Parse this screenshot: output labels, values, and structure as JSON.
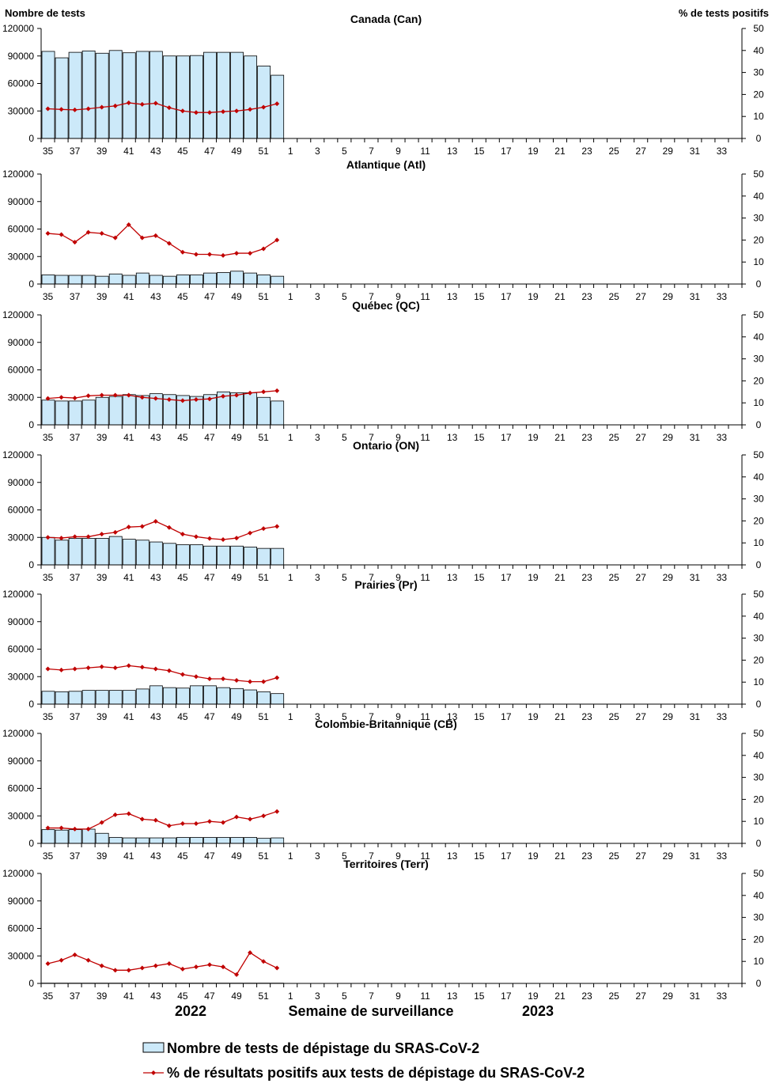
{
  "chart_data": {
    "type": "bar+line",
    "y_left_label": "Nombre de tests",
    "y_right_label": "% de tests positifs",
    "y_left_range": [
      0,
      120000
    ],
    "y_left_ticks": [
      0,
      30000,
      60000,
      90000,
      120000
    ],
    "y_right_range": [
      0,
      50
    ],
    "y_right_ticks": [
      0,
      10,
      20,
      30,
      40,
      50
    ],
    "weeks": [
      "35",
      "36",
      "37",
      "38",
      "39",
      "40",
      "41",
      "42",
      "43",
      "44",
      "45",
      "46",
      "47",
      "48",
      "49",
      "50",
      "51",
      "52",
      "1",
      "2",
      "3",
      "4",
      "5",
      "6",
      "7",
      "8",
      "9",
      "10",
      "11",
      "12",
      "13",
      "14",
      "15",
      "16",
      "17",
      "18",
      "19",
      "20",
      "21",
      "22",
      "23",
      "24",
      "25",
      "26",
      "27",
      "28",
      "29",
      "30",
      "31",
      "32",
      "33",
      "34"
    ],
    "week_tick_labels": [
      "35",
      "37",
      "39",
      "41",
      "43",
      "45",
      "47",
      "49",
      "51",
      "1",
      "3",
      "5",
      "7",
      "9",
      "11",
      "13",
      "15",
      "17",
      "19",
      "21",
      "23",
      "25",
      "27",
      "29",
      "31",
      "33"
    ],
    "year_labels": [
      "2022",
      "2023"
    ],
    "x_axis_title": "Semaine de surveillance",
    "legend": {
      "bars": "Nombre de tests de dépistage du SRAS-CoV-2",
      "line": "% de résultats positifs aux tests de dépistage du SRAS-CoV-2"
    },
    "colors": {
      "bar_fill": "#cce9f9",
      "bar_stroke": "#000000",
      "line": "#c00000",
      "marker": "#c00000"
    },
    "panels": [
      {
        "title": "Canada (Can)",
        "tests": [
          95000,
          88000,
          94000,
          95500,
          93000,
          96000,
          93500,
          95000,
          95000,
          90000,
          90000,
          90500,
          94000,
          94000,
          94000,
          90000,
          79000,
          69000
        ],
        "positivity": [
          13.5,
          13.2,
          13.0,
          13.5,
          14.2,
          14.8,
          16.2,
          15.5,
          16.0,
          14.0,
          12.5,
          11.8,
          11.8,
          12.2,
          12.5,
          13.2,
          14.2,
          15.8
        ]
      },
      {
        "title": "Atlantique (Atl)",
        "tests": [
          10000,
          9500,
          9500,
          9500,
          8500,
          11000,
          9500,
          12000,
          9500,
          8500,
          10000,
          10000,
          12000,
          12500,
          14000,
          12000,
          10000,
          8500
        ],
        "positivity": [
          23.0,
          22.5,
          19.0,
          23.5,
          23.0,
          21.0,
          27.0,
          21.0,
          22.0,
          18.5,
          14.5,
          13.5,
          13.5,
          13.0,
          14.0,
          14.0,
          16.0,
          20.0
        ]
      },
      {
        "title": "Québec (QC)",
        "tests": [
          27000,
          26000,
          26000,
          27000,
          30000,
          31000,
          33000,
          32000,
          34000,
          33000,
          32000,
          31000,
          33000,
          36000,
          35000,
          35000,
          30000,
          26000
        ],
        "positivity": [
          12.0,
          12.5,
          12.2,
          13.2,
          13.5,
          13.5,
          13.5,
          12.5,
          12.0,
          11.5,
          11.0,
          11.5,
          11.8,
          13.0,
          13.5,
          14.5,
          15.0,
          15.5
        ]
      },
      {
        "title": "Ontario (ON)",
        "tests": [
          30000,
          27000,
          29000,
          29000,
          29000,
          31000,
          28000,
          27000,
          25000,
          23500,
          22000,
          22000,
          20500,
          20500,
          20500,
          19500,
          18000,
          18000
        ],
        "positivity": [
          12.5,
          12.2,
          12.8,
          12.8,
          14.0,
          14.8,
          17.2,
          17.5,
          19.8,
          17.0,
          14.0,
          12.8,
          12.0,
          11.5,
          12.2,
          14.5,
          16.5,
          17.5
        ]
      },
      {
        "title": "Prairies (Pr)",
        "tests": [
          14000,
          13500,
          14000,
          15000,
          15000,
          15000,
          15000,
          16500,
          20000,
          18000,
          17500,
          20000,
          20000,
          18000,
          17000,
          15500,
          13500,
          11500
        ],
        "positivity": [
          16.0,
          15.5,
          16.0,
          16.5,
          17.0,
          16.5,
          17.5,
          16.8,
          16.0,
          15.2,
          13.5,
          12.5,
          11.5,
          11.5,
          10.8,
          10.2,
          10.2,
          12.0
        ]
      },
      {
        "title": "Colombie-Britannique (CB)",
        "tests": [
          15000,
          14500,
          15000,
          15500,
          11000,
          6500,
          6000,
          6000,
          6000,
          6000,
          6500,
          6500,
          6500,
          6500,
          6500,
          6500,
          5500,
          6000
        ],
        "positivity": [
          7.0,
          7.0,
          6.5,
          6.5,
          9.5,
          13.0,
          13.5,
          11.0,
          10.5,
          8.0,
          9.0,
          9.0,
          10.0,
          9.5,
          12.0,
          11.0,
          12.5,
          14.5
        ]
      },
      {
        "title": "Territoires (Terr)",
        "tests": [
          300,
          300,
          300,
          300,
          300,
          300,
          300,
          300,
          300,
          300,
          300,
          300,
          300,
          300,
          300,
          300,
          300,
          300
        ],
        "positivity": [
          9.0,
          10.5,
          13.0,
          10.5,
          8.0,
          6.0,
          6.0,
          7.0,
          8.0,
          9.0,
          6.5,
          7.5,
          8.5,
          7.5,
          4.0,
          14.0,
          10.0,
          7.0
        ]
      }
    ]
  }
}
